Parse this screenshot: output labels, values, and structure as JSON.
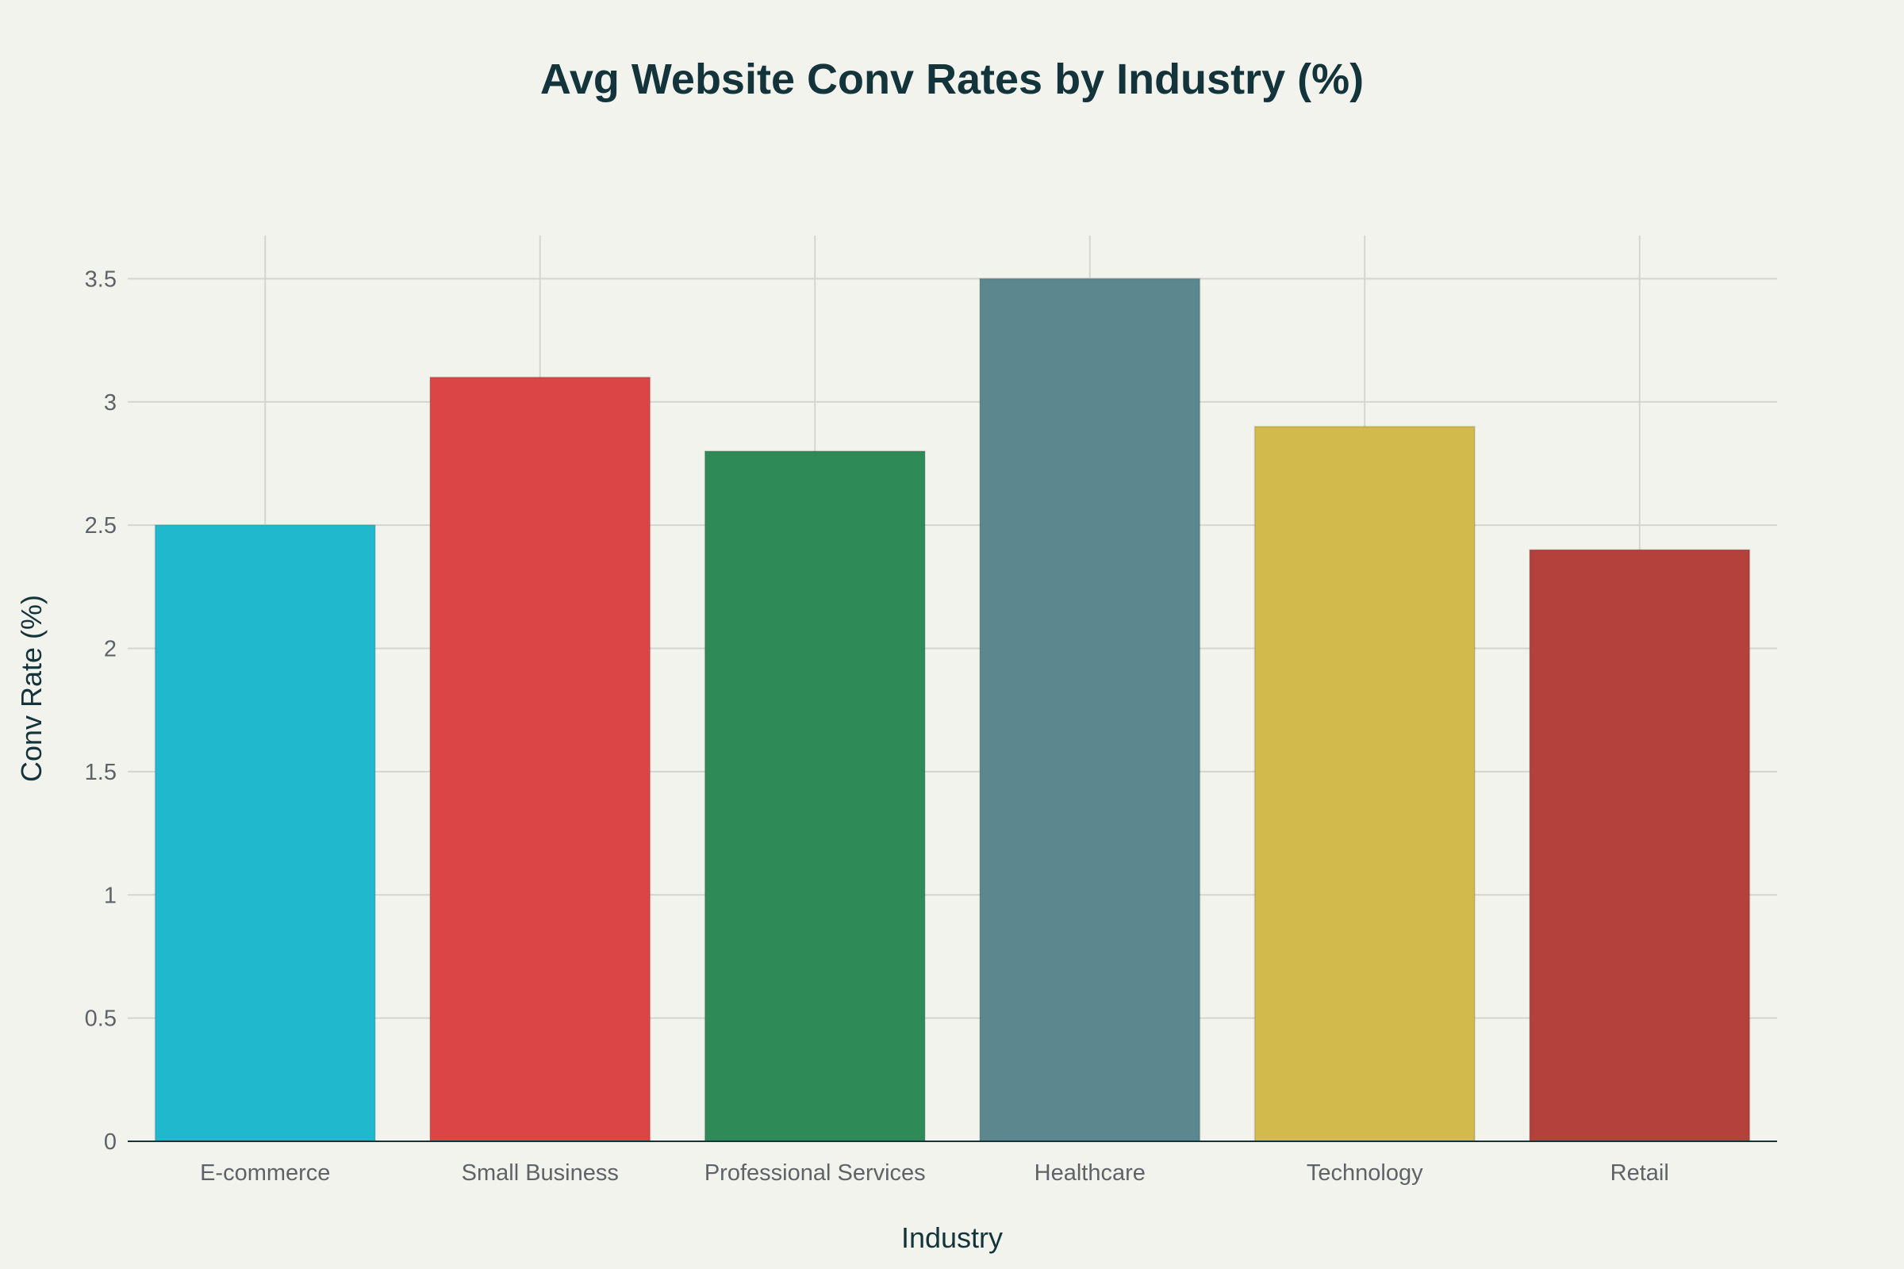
{
  "chart_data": {
    "type": "bar",
    "title": "Avg Website Conv Rates by Industry (%)",
    "xlabel": "Industry",
    "ylabel": "Conv Rate (%)",
    "categories": [
      "E-commerce",
      "Small Business",
      "Professional Services",
      "Healthcare",
      "Technology",
      "Retail"
    ],
    "values": [
      2.5,
      3.1,
      2.8,
      3.5,
      2.9,
      2.4
    ],
    "colors": [
      "#1fb8cd",
      "#db4545",
      "#2e8b57",
      "#5d878f",
      "#d2ba4c",
      "#b4413c"
    ],
    "ylim": [
      0,
      3.675
    ],
    "yticks": [
      0,
      0.5,
      1,
      1.5,
      2,
      2.5,
      3,
      3.5
    ],
    "ytick_labels": [
      "0",
      "0.5",
      "1",
      "1.5",
      "2",
      "2.5",
      "3",
      "3.5"
    ],
    "grid": true,
    "legend": "none"
  }
}
